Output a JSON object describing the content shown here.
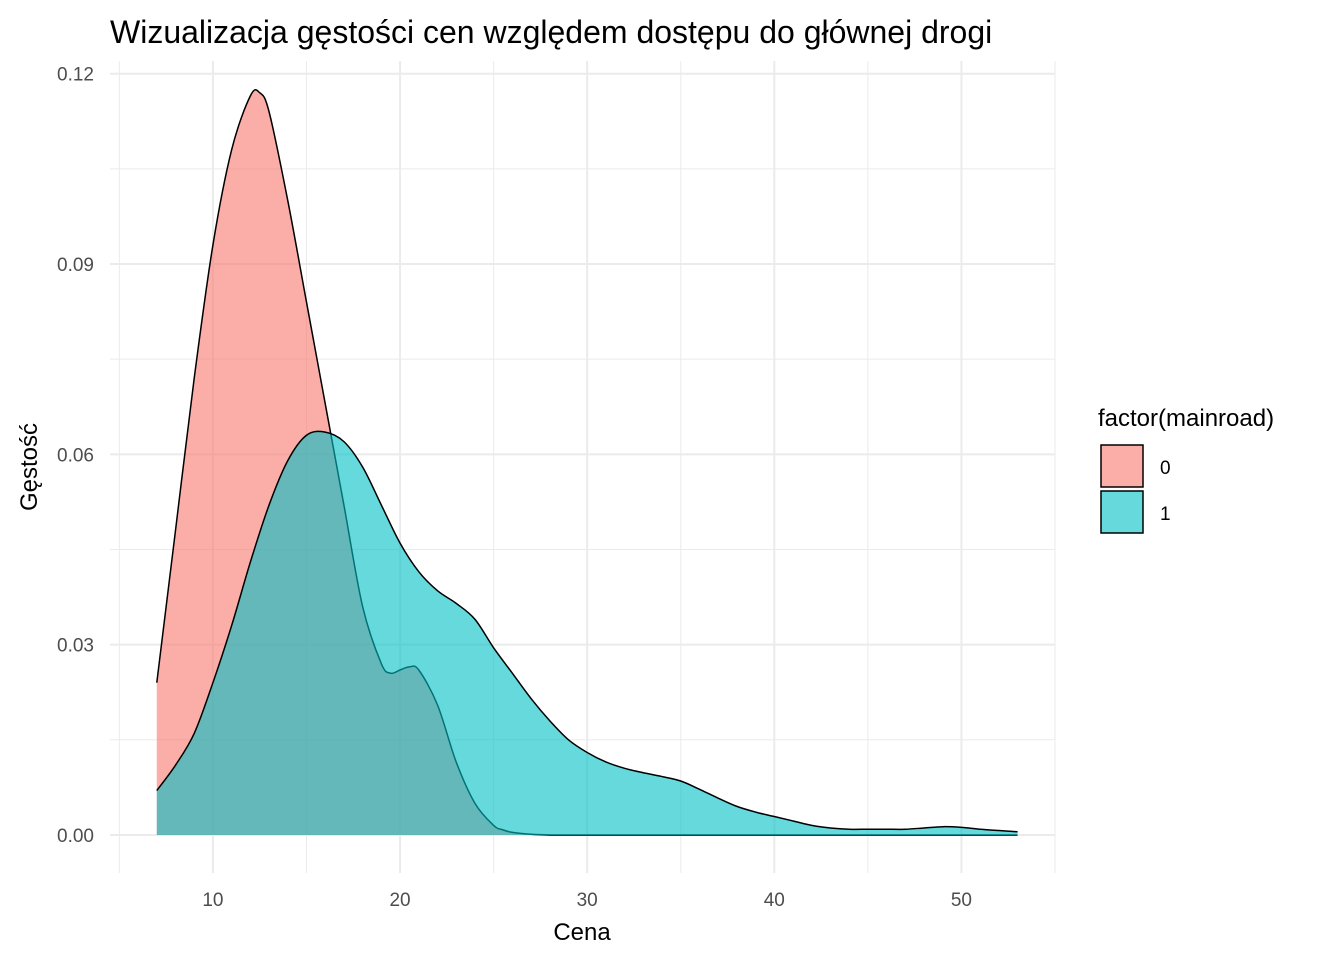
{
  "chart_data": {
    "type": "area",
    "title": "Wizualizacja gęstości cen względem dostępu do głównej drogi",
    "xlabel": "Cena",
    "ylabel": "Gęstość",
    "xlim": [
      4.5,
      55
    ],
    "ylim": [
      -0.006,
      0.122
    ],
    "x_ticks": [
      10,
      20,
      30,
      40,
      50
    ],
    "x_tick_labels": [
      "10",
      "20",
      "30",
      "40",
      "50"
    ],
    "y_ticks": [
      0.0,
      0.03,
      0.06,
      0.09,
      0.12
    ],
    "y_tick_labels": [
      "0.00",
      "0.03",
      "0.06",
      "0.09",
      "0.12"
    ],
    "grid": true,
    "legend": {
      "title": "factor(mainroad)",
      "position": "right"
    },
    "colors": {
      "series_0_fill": "#F8766D",
      "series_1_fill": "#00BFC4",
      "outline": "#000000",
      "grid": "#ebebeb"
    },
    "series": [
      {
        "name": "0",
        "x": [
          7.0,
          8.0,
          9.0,
          10.0,
          11.0,
          12.0,
          12.5,
          13.0,
          14.0,
          15.0,
          16.0,
          17.0,
          18.0,
          19.0,
          19.5,
          20.0,
          20.5,
          21.0,
          22.0,
          23.0,
          24.0,
          25.0,
          25.5,
          26.0,
          27.0,
          28.0,
          30.0,
          35.0,
          40.0,
          45.0,
          50.0,
          53.0
        ],
        "y": [
          0.024,
          0.048,
          0.072,
          0.093,
          0.108,
          0.1165,
          0.117,
          0.114,
          0.1,
          0.084,
          0.068,
          0.052,
          0.036,
          0.027,
          0.0255,
          0.026,
          0.0265,
          0.026,
          0.0205,
          0.0115,
          0.005,
          0.0015,
          0.0008,
          0.0004,
          0.0001,
          0.0,
          0.0,
          0.0,
          0.0,
          0.0,
          0.0,
          0.0
        ]
      },
      {
        "name": "1",
        "x": [
          7.0,
          8.0,
          9.0,
          10.0,
          11.0,
          12.0,
          13.0,
          14.0,
          15.0,
          16.0,
          17.0,
          18.0,
          19.0,
          20.0,
          21.0,
          22.0,
          23.0,
          24.0,
          25.0,
          26.0,
          27.0,
          28.0,
          29.0,
          30.0,
          31.0,
          32.0,
          33.0,
          34.0,
          35.0,
          36.0,
          37.0,
          38.0,
          39.0,
          40.0,
          41.0,
          42.0,
          43.0,
          44.0,
          45.0,
          46.0,
          47.0,
          48.0,
          49.0,
          50.0,
          51.0,
          52.0,
          53.0
        ],
        "y": [
          0.007,
          0.011,
          0.016,
          0.024,
          0.033,
          0.043,
          0.052,
          0.059,
          0.063,
          0.0635,
          0.062,
          0.058,
          0.052,
          0.046,
          0.0415,
          0.0385,
          0.0365,
          0.034,
          0.0295,
          0.0255,
          0.0215,
          0.018,
          0.015,
          0.013,
          0.0115,
          0.0105,
          0.0098,
          0.0092,
          0.0085,
          0.0072,
          0.0058,
          0.0045,
          0.0036,
          0.0029,
          0.0022,
          0.0015,
          0.0011,
          0.0009,
          0.0009,
          0.0009,
          0.0009,
          0.0011,
          0.0013,
          0.0012,
          0.0009,
          0.0007,
          0.0005
        ]
      }
    ]
  }
}
